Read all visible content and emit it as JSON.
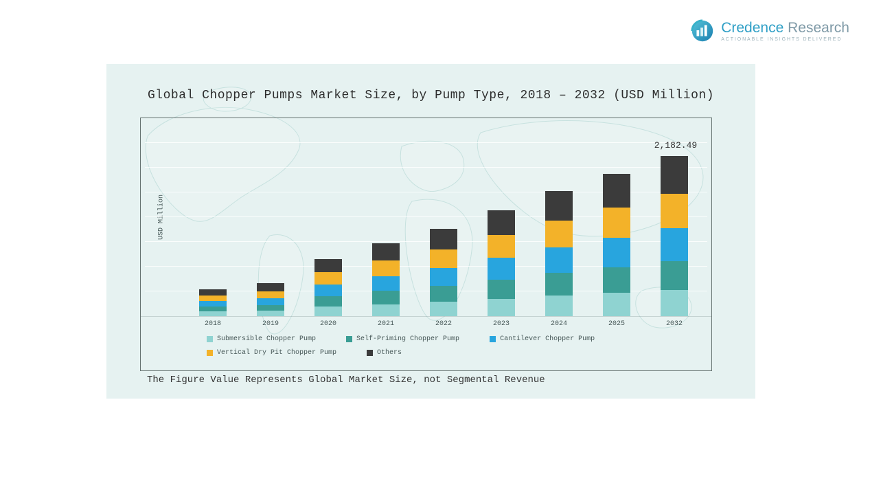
{
  "logo": {
    "brand_credence": "Credence",
    "brand_research": "Research",
    "tagline": "Actionable Insights Delivered"
  },
  "title": "Global Chopper Pumps Market Size, by Pump Type, 2018 – 2032 (USD Million)",
  "footnote": "The Figure Value Represents Global Market Size, not Segmental Revenue",
  "chart_data": {
    "type": "bar",
    "stacked": true,
    "title": "Global Chopper Pumps Market Size, by Pump Type, 2018 – 2032 (USD Million)",
    "xlabel": "",
    "ylabel": "USD Million",
    "ylim": [
      0,
      2700
    ],
    "grid": true,
    "legend_position": "bottom",
    "categories": [
      "2018",
      "2019",
      "2020",
      "2021",
      "2022",
      "2023",
      "2024",
      "2025",
      "2032"
    ],
    "series": [
      {
        "name": "Submersible Chopper Pump",
        "color": "#8fd3d1",
        "values": [
          61.2,
          73.6,
          128.8,
          164.0,
          196.2,
          239.0,
          282.0,
          320.4,
          360.1
        ]
      },
      {
        "name": "Self-Priming Chopper Pump",
        "color": "#3a9d94",
        "values": [
          66.7,
          80.3,
          140.5,
          178.9,
          214.1,
          260.8,
          307.6,
          349.5,
          392.8
        ]
      },
      {
        "name": "Cantilever Chopper Pump",
        "color": "#28a5de",
        "values": [
          76.0,
          91.5,
          160.0,
          203.8,
          243.8,
          297.0,
          350.3,
          398.0,
          447.4
        ]
      },
      {
        "name": "Vertical Dry Pit Chopper Pump",
        "color": "#f3b229",
        "values": [
          79.7,
          95.9,
          167.8,
          213.7,
          255.7,
          311.5,
          367.4,
          417.4,
          469.2
        ]
      },
      {
        "name": "Others",
        "color": "#3b3b3b",
        "values": [
          87.1,
          104.9,
          183.4,
          233.6,
          279.5,
          340.4,
          401.6,
          456.3,
          512.99
        ]
      }
    ],
    "annotation": {
      "category": "2032",
      "label": "2,182.49"
    },
    "totals_note": "2032 total labeled as 2,182.49"
  }
}
